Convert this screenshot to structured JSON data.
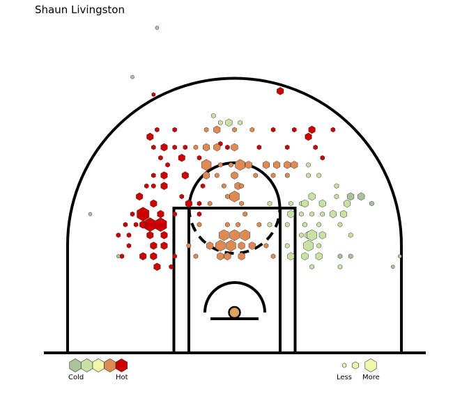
{
  "chart_data": {
    "type": "hexbin",
    "title": "Shaun Livingston",
    "grid": false,
    "color_scale": {
      "labels": {
        "low": "Cold",
        "high": "Hot"
      },
      "colors": [
        "#a9c49c",
        "#c8e2a4",
        "#f0f7a8",
        "#df8a53",
        "#cc0000"
      ]
    },
    "size_scale": {
      "labels": {
        "low": "Less",
        "high": "More"
      },
      "color": "#f0f7a8"
    },
    "court": {
      "units": "feet",
      "x_range": [
        -25,
        25
      ],
      "y_range": [
        -4,
        42
      ],
      "basket": [
        0,
        0
      ],
      "three_point_radius": 23.75,
      "paint_width_outer": 16,
      "paint_width_inner": 12,
      "free_throw_distance": 19,
      "restricted_radius": 4
    },
    "hexes": [
      {
        "x": -11.5,
        "y": 31.0,
        "heat": 4,
        "freq": 0.3
      },
      {
        "x": 6.5,
        "y": 31.5,
        "heat": 4,
        "freq": 0.55
      },
      {
        "x": -8.5,
        "y": 26.0,
        "heat": 4,
        "freq": 0.35
      },
      {
        "x": -11.0,
        "y": 26.0,
        "heat": 4,
        "freq": 0.35
      },
      {
        "x": -4.0,
        "y": 26.0,
        "heat": 3,
        "freq": 0.35
      },
      {
        "x": -2.5,
        "y": 26.0,
        "heat": 3,
        "freq": 0.55
      },
      {
        "x": 0.0,
        "y": 26.0,
        "heat": 3,
        "freq": 0.35
      },
      {
        "x": 2.5,
        "y": 26.0,
        "heat": 3,
        "freq": 0.35
      },
      {
        "x": 5.5,
        "y": 26.0,
        "heat": 4,
        "freq": 0.35
      },
      {
        "x": 8.5,
        "y": 26.0,
        "heat": 4,
        "freq": 0.35
      },
      {
        "x": 11.0,
        "y": 26.0,
        "heat": 4,
        "freq": 0.55
      },
      {
        "x": 14.0,
        "y": 26.0,
        "heat": 4,
        "freq": 0.35
      },
      {
        "x": -3.0,
        "y": 28.0,
        "heat": 1,
        "freq": 0.35
      },
      {
        "x": -2.0,
        "y": 27.0,
        "heat": 1,
        "freq": 0.35
      },
      {
        "x": -0.8,
        "y": 27.0,
        "heat": 1,
        "freq": 0.55
      },
      {
        "x": 0.8,
        "y": 27.0,
        "heat": 1,
        "freq": 0.35
      },
      {
        "x": -12.0,
        "y": 25.0,
        "heat": 4,
        "freq": 0.55
      },
      {
        "x": -2.0,
        "y": 24.0,
        "heat": 4,
        "freq": 0.35
      },
      {
        "x": 10.5,
        "y": 25.0,
        "heat": 4,
        "freq": 0.55
      },
      {
        "x": 11.5,
        "y": 23.5,
        "heat": 4,
        "freq": 0.35
      },
      {
        "x": -11.5,
        "y": 23.5,
        "heat": 4,
        "freq": 0.35
      },
      {
        "x": -10.0,
        "y": 23.5,
        "heat": 4,
        "freq": 0.55
      },
      {
        "x": -8.5,
        "y": 23.5,
        "heat": 4,
        "freq": 0.35
      },
      {
        "x": -7.0,
        "y": 23.5,
        "heat": 4,
        "freq": 0.35
      },
      {
        "x": -5.5,
        "y": 23.5,
        "heat": 3,
        "freq": 0.35
      },
      {
        "x": -4.0,
        "y": 23.5,
        "heat": 3,
        "freq": 0.55
      },
      {
        "x": -2.5,
        "y": 23.5,
        "heat": 3,
        "freq": 0.55
      },
      {
        "x": -1.0,
        "y": 23.5,
        "heat": 4,
        "freq": 0.35
      },
      {
        "x": 0.0,
        "y": 23.5,
        "heat": 3,
        "freq": 0.55
      },
      {
        "x": 3.5,
        "y": 23.5,
        "heat": 4,
        "freq": 0.35
      },
      {
        "x": 7.5,
        "y": 23.5,
        "heat": 4,
        "freq": 0.35
      },
      {
        "x": 12.5,
        "y": 22.0,
        "heat": 4,
        "freq": 0.35
      },
      {
        "x": -10.5,
        "y": 22.0,
        "heat": 4,
        "freq": 0.35
      },
      {
        "x": -7.5,
        "y": 22.0,
        "heat": 4,
        "freq": 0.55
      },
      {
        "x": -5.0,
        "y": 22.0,
        "heat": 4,
        "freq": 0.35
      },
      {
        "x": -4.0,
        "y": 21.0,
        "heat": 3,
        "freq": 0.8
      },
      {
        "x": -2.0,
        "y": 21.0,
        "heat": 3,
        "freq": 0.35
      },
      {
        "x": -0.5,
        "y": 21.0,
        "heat": 3,
        "freq": 0.35
      },
      {
        "x": 0.8,
        "y": 21.0,
        "heat": 3,
        "freq": 0.8
      },
      {
        "x": 2.0,
        "y": 21.0,
        "heat": 3,
        "freq": 0.55
      },
      {
        "x": 4.5,
        "y": 21.0,
        "heat": 3,
        "freq": 0.55
      },
      {
        "x": 6.0,
        "y": 21.0,
        "heat": 3,
        "freq": 0.55
      },
      {
        "x": 7.5,
        "y": 21.0,
        "heat": 3,
        "freq": 0.55
      },
      {
        "x": 8.5,
        "y": 21.0,
        "heat": 3,
        "freq": 0.55
      },
      {
        "x": 10.5,
        "y": 21.0,
        "heat": 1,
        "freq": 0.35
      },
      {
        "x": -9.5,
        "y": 21.0,
        "heat": 4,
        "freq": 0.35
      },
      {
        "x": -11.5,
        "y": 19.5,
        "heat": 4,
        "freq": 0.35
      },
      {
        "x": -10.0,
        "y": 19.5,
        "heat": 4,
        "freq": 0.55
      },
      {
        "x": -7.0,
        "y": 19.5,
        "heat": 4,
        "freq": 0.55
      },
      {
        "x": -4.0,
        "y": 19.5,
        "heat": 3,
        "freq": 0.55
      },
      {
        "x": -2.5,
        "y": 19.5,
        "heat": 3,
        "freq": 0.35
      },
      {
        "x": 0.0,
        "y": 19.5,
        "heat": 3,
        "freq": 0.55
      },
      {
        "x": 3.0,
        "y": 19.5,
        "heat": 3,
        "freq": 0.35
      },
      {
        "x": 5.5,
        "y": 19.5,
        "heat": 3,
        "freq": 0.35
      },
      {
        "x": 7.5,
        "y": 19.5,
        "heat": 3,
        "freq": 0.35
      },
      {
        "x": 10.5,
        "y": 19.5,
        "heat": 1,
        "freq": 0.35
      },
      {
        "x": 12.0,
        "y": 19.5,
        "heat": 1,
        "freq": 0.35
      },
      {
        "x": -12.5,
        "y": 18.0,
        "heat": 4,
        "freq": 0.35
      },
      {
        "x": -11.5,
        "y": 18.0,
        "heat": 4,
        "freq": 0.35
      },
      {
        "x": -10.0,
        "y": 18.0,
        "heat": 4,
        "freq": 0.55
      },
      {
        "x": -4.5,
        "y": 18.0,
        "heat": 4,
        "freq": 0.35
      },
      {
        "x": -1.5,
        "y": 18.0,
        "heat": 3,
        "freq": 0.35
      },
      {
        "x": 0.5,
        "y": 18.0,
        "heat": 3,
        "freq": 0.55
      },
      {
        "x": 1.0,
        "y": 18.0,
        "heat": 3,
        "freq": 0.35
      },
      {
        "x": 14.5,
        "y": 18.0,
        "heat": 1,
        "freq": 0.35
      },
      {
        "x": -13.5,
        "y": 16.5,
        "heat": 4,
        "freq": 0.55
      },
      {
        "x": -7.5,
        "y": 16.5,
        "heat": 4,
        "freq": 0.35
      },
      {
        "x": -1.0,
        "y": 16.5,
        "heat": 3,
        "freq": 0.35
      },
      {
        "x": 0.0,
        "y": 16.5,
        "heat": 3,
        "freq": 0.8
      },
      {
        "x": 11.0,
        "y": 16.5,
        "heat": 1,
        "freq": 0.55
      },
      {
        "x": 14.5,
        "y": 16.5,
        "heat": 1,
        "freq": 0.35
      },
      {
        "x": 16.5,
        "y": 16.5,
        "heat": 0,
        "freq": 0.55
      },
      {
        "x": 18.0,
        "y": 16.5,
        "heat": 0,
        "freq": 0.55
      },
      {
        "x": -11.5,
        "y": 15.5,
        "heat": 4,
        "freq": 0.55
      },
      {
        "x": -6.5,
        "y": 15.5,
        "heat": 4,
        "freq": 0.55
      },
      {
        "x": -5.0,
        "y": 15.5,
        "heat": 4,
        "freq": 0.35
      },
      {
        "x": -3.5,
        "y": 15.5,
        "heat": 3,
        "freq": 0.35
      },
      {
        "x": 1.0,
        "y": 15.5,
        "heat": 3,
        "freq": 0.35
      },
      {
        "x": 5.0,
        "y": 15.5,
        "heat": 1,
        "freq": 0.35
      },
      {
        "x": 8.0,
        "y": 15.5,
        "heat": 1,
        "freq": 0.35
      },
      {
        "x": 9.5,
        "y": 15.5,
        "heat": 1,
        "freq": 0.35
      },
      {
        "x": 10.0,
        "y": 15.5,
        "heat": 1,
        "freq": 0.55
      },
      {
        "x": 12.5,
        "y": 15.5,
        "heat": 1,
        "freq": 0.55
      },
      {
        "x": 16.0,
        "y": 15.5,
        "heat": 1,
        "freq": 0.55
      },
      {
        "x": 19.5,
        "y": 15.5,
        "heat": 0,
        "freq": 0.35
      },
      {
        "x": -14.5,
        "y": 14.0,
        "heat": 4,
        "freq": 0.35
      },
      {
        "x": -13.0,
        "y": 14.0,
        "heat": 4,
        "freq": 1.0
      },
      {
        "x": -10.5,
        "y": 14.0,
        "heat": 4,
        "freq": 0.55
      },
      {
        "x": -8.5,
        "y": 14.0,
        "heat": 4,
        "freq": 0.35
      },
      {
        "x": -5.0,
        "y": 14.0,
        "heat": 4,
        "freq": 0.35
      },
      {
        "x": 1.5,
        "y": 14.0,
        "heat": 3,
        "freq": 0.35
      },
      {
        "x": 8.0,
        "y": 14.0,
        "heat": 1,
        "freq": 0.55
      },
      {
        "x": 9.5,
        "y": 14.0,
        "heat": 1,
        "freq": 0.35
      },
      {
        "x": 11.0,
        "y": 14.0,
        "heat": 1,
        "freq": 0.35
      },
      {
        "x": 12.5,
        "y": 14.0,
        "heat": 1,
        "freq": 0.35
      },
      {
        "x": 14.0,
        "y": 14.0,
        "heat": 1,
        "freq": 0.55
      },
      {
        "x": 15.5,
        "y": 14.0,
        "heat": 1,
        "freq": 0.55
      },
      {
        "x": -15.5,
        "y": 12.5,
        "heat": 4,
        "freq": 0.35
      },
      {
        "x": -14.0,
        "y": 12.5,
        "heat": 4,
        "freq": 0.35
      },
      {
        "x": -12.0,
        "y": 12.5,
        "heat": 4,
        "freq": 1.0
      },
      {
        "x": -10.5,
        "y": 12.5,
        "heat": 4,
        "freq": 1.0
      },
      {
        "x": -13.0,
        "y": 12.5,
        "heat": 4,
        "freq": 0.55
      },
      {
        "x": -5.0,
        "y": 12.5,
        "heat": 3,
        "freq": 0.35
      },
      {
        "x": -1.0,
        "y": 12.5,
        "heat": 3,
        "freq": 0.35
      },
      {
        "x": 0.5,
        "y": 12.5,
        "heat": 3,
        "freq": 0.35
      },
      {
        "x": 3.5,
        "y": 12.5,
        "heat": 3,
        "freq": 0.35
      },
      {
        "x": 5.0,
        "y": 12.5,
        "heat": 1,
        "freq": 0.35
      },
      {
        "x": 7.5,
        "y": 12.5,
        "heat": 1,
        "freq": 0.35
      },
      {
        "x": 10.0,
        "y": 12.5,
        "heat": 1,
        "freq": 0.35
      },
      {
        "x": 12.0,
        "y": 12.5,
        "heat": 1,
        "freq": 0.35
      },
      {
        "x": 15.0,
        "y": 12.5,
        "heat": 1,
        "freq": 0.35
      },
      {
        "x": -16.5,
        "y": 11.0,
        "heat": 4,
        "freq": 0.35
      },
      {
        "x": -15.0,
        "y": 11.0,
        "heat": 4,
        "freq": 0.35
      },
      {
        "x": -12.0,
        "y": 11.0,
        "heat": 4,
        "freq": 0.55
      },
      {
        "x": -10.0,
        "y": 11.0,
        "heat": 4,
        "freq": 0.55
      },
      {
        "x": -1.5,
        "y": 11.0,
        "heat": 3,
        "freq": 0.8
      },
      {
        "x": 0.0,
        "y": 11.0,
        "heat": 3,
        "freq": 0.8
      },
      {
        "x": 1.5,
        "y": 11.0,
        "heat": 3,
        "freq": 0.8
      },
      {
        "x": 9.5,
        "y": 11.0,
        "heat": 1,
        "freq": 0.35
      },
      {
        "x": 10.5,
        "y": 11.0,
        "heat": 1,
        "freq": 0.55
      },
      {
        "x": 11.0,
        "y": 11.0,
        "heat": 1,
        "freq": 0.8
      },
      {
        "x": 12.5,
        "y": 11.0,
        "heat": 1,
        "freq": 0.55
      },
      {
        "x": 16.5,
        "y": 11.0,
        "heat": 1,
        "freq": 0.35
      },
      {
        "x": -15.0,
        "y": 9.5,
        "heat": 4,
        "freq": 0.35
      },
      {
        "x": -11.5,
        "y": 9.5,
        "heat": 4,
        "freq": 0.55
      },
      {
        "x": -10.0,
        "y": 9.5,
        "heat": 4,
        "freq": 0.55
      },
      {
        "x": -6.5,
        "y": 9.5,
        "heat": 3,
        "freq": 0.35
      },
      {
        "x": -3.5,
        "y": 9.5,
        "heat": 3,
        "freq": 0.55
      },
      {
        "x": -2.0,
        "y": 9.5,
        "heat": 3,
        "freq": 0.8
      },
      {
        "x": -0.5,
        "y": 9.5,
        "heat": 3,
        "freq": 0.8
      },
      {
        "x": 1.0,
        "y": 9.5,
        "heat": 3,
        "freq": 0.55
      },
      {
        "x": 2.5,
        "y": 9.5,
        "heat": 3,
        "freq": 0.55
      },
      {
        "x": 4.5,
        "y": 9.5,
        "heat": 3,
        "freq": 0.35
      },
      {
        "x": 7.5,
        "y": 9.5,
        "heat": 1,
        "freq": 0.35
      },
      {
        "x": 10.5,
        "y": 9.5,
        "heat": 1,
        "freq": 0.8
      },
      {
        "x": 12.0,
        "y": 9.5,
        "heat": 1,
        "freq": 0.35
      },
      {
        "x": -16.0,
        "y": 8.0,
        "heat": 4,
        "freq": 0.35
      },
      {
        "x": -13.0,
        "y": 8.0,
        "heat": 4,
        "freq": 0.55
      },
      {
        "x": -11.5,
        "y": 8.0,
        "heat": 4,
        "freq": 0.55
      },
      {
        "x": -8.5,
        "y": 8.0,
        "heat": 4,
        "freq": 0.35
      },
      {
        "x": -1.0,
        "y": 8.0,
        "heat": 3,
        "freq": 0.55
      },
      {
        "x": 1.0,
        "y": 8.0,
        "heat": 3,
        "freq": 0.55
      },
      {
        "x": 5.5,
        "y": 8.0,
        "heat": 3,
        "freq": 0.35
      },
      {
        "x": 8.0,
        "y": 8.0,
        "heat": 1,
        "freq": 0.55
      },
      {
        "x": 10.0,
        "y": 8.0,
        "heat": 1,
        "freq": 0.55
      },
      {
        "x": 12.0,
        "y": 8.0,
        "heat": 1,
        "freq": 0.55
      },
      {
        "x": 15.0,
        "y": 8.0,
        "heat": 0,
        "freq": 0.35
      },
      {
        "x": 16.5,
        "y": 8.0,
        "heat": 0,
        "freq": 0.35
      },
      {
        "x": -11.0,
        "y": 6.5,
        "heat": 4,
        "freq": 0.55
      },
      {
        "x": -9.0,
        "y": 6.5,
        "heat": 4,
        "freq": 0.35
      },
      {
        "x": 11.0,
        "y": 6.5,
        "heat": 1,
        "freq": 0.35
      },
      {
        "x": 15.0,
        "y": 6.5,
        "heat": 1,
        "freq": 0.35
      },
      {
        "x": -2.0,
        "y": 8.0,
        "heat": 3,
        "freq": 0.55
      },
      {
        "x": -5.5,
        "y": 8.0,
        "heat": 3,
        "freq": 0.35
      }
    ],
    "outliers": [
      {
        "x": -11.0,
        "y": 40.5,
        "heat": 0,
        "freq": 0.35
      },
      {
        "x": -14.5,
        "y": 33.5,
        "heat": 0,
        "freq": 0.35
      },
      {
        "x": -20.5,
        "y": 14.0,
        "heat": 0,
        "freq": 0.35
      },
      {
        "x": -16.5,
        "y": 8.0,
        "heat": 0,
        "freq": 0.35
      },
      {
        "x": 22.5,
        "y": 6.5,
        "heat": 0,
        "freq": 0.35
      },
      {
        "x": 23.5,
        "y": 8.0,
        "heat": 0,
        "freq": 0.35
      }
    ]
  }
}
